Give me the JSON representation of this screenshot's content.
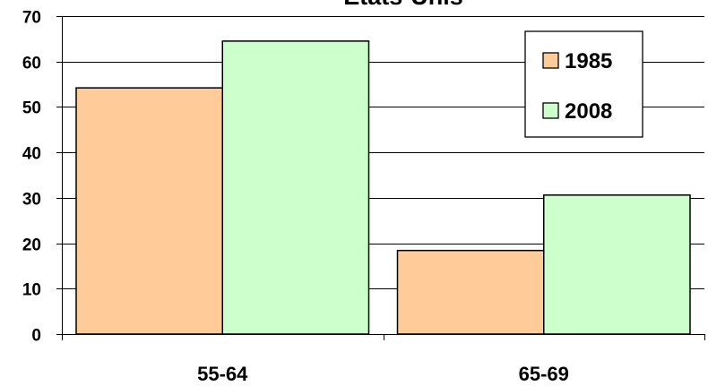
{
  "chart_data": {
    "type": "bar",
    "title": "Etats-Unis",
    "categories": [
      "55-64",
      "65-69"
    ],
    "series": [
      {
        "name": "1985",
        "values": [
          54.2,
          18.4
        ],
        "color": "#FFCC99"
      },
      {
        "name": "2008",
        "values": [
          64.5,
          30.6
        ],
        "color": "#CCFFCC"
      }
    ],
    "xlabel": "",
    "ylabel": "",
    "ylim": [
      0,
      70
    ],
    "yticks": [
      0,
      10,
      20,
      30,
      40,
      50,
      60,
      70
    ],
    "grid": true,
    "legend": "top-right"
  }
}
